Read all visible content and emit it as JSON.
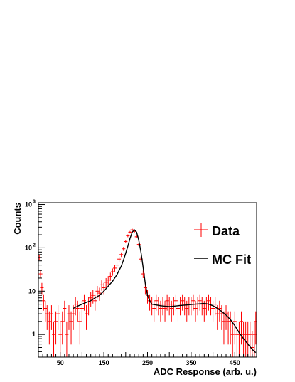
{
  "chart_data": {
    "type": "line",
    "xlabel": "ADC Response (arb. u.)",
    "ylabel": "Counts",
    "xlim": [
      0,
      500
    ],
    "ylim": [
      0.3,
      1100
    ],
    "yscale": "log",
    "x_ticks": [
      50,
      150,
      250,
      350,
      450
    ],
    "y_ticks": [
      {
        "value": 1,
        "label": "1"
      },
      {
        "value": 10,
        "label": "10"
      },
      {
        "value": 100,
        "label": "10",
        "exp": "2"
      },
      {
        "value": 1000,
        "label": "10",
        "exp": "3"
      }
    ],
    "grid": false,
    "legend_position": "right",
    "series": [
      {
        "name": "Data",
        "color": "#ff0000",
        "style": "error-bars",
        "x": [
          2,
          5,
          8,
          12,
          16,
          20,
          25,
          30,
          35,
          40,
          45,
          50,
          55,
          60,
          65,
          70,
          75,
          80,
          85,
          90,
          95,
          100,
          105,
          110,
          115,
          120,
          125,
          130,
          135,
          140,
          145,
          150,
          155,
          160,
          165,
          170,
          175,
          180,
          185,
          190,
          195,
          200,
          205,
          210,
          215,
          220,
          225,
          230,
          235,
          240,
          245,
          250,
          255,
          260,
          265,
          270,
          275,
          280,
          285,
          290,
          295,
          300,
          305,
          310,
          315,
          320,
          325,
          330,
          335,
          340,
          345,
          350,
          355,
          360,
          365,
          370,
          375,
          380,
          385,
          390,
          395,
          400,
          405,
          410,
          415,
          420,
          425,
          430,
          435,
          440,
          445,
          450,
          455,
          460,
          465,
          470,
          475,
          480,
          485,
          490,
          495,
          498
        ],
        "y": [
          60,
          25,
          12,
          6,
          4,
          3,
          2,
          3,
          1,
          2,
          3,
          1,
          2,
          4,
          1,
          3,
          2,
          3,
          5,
          4,
          2,
          4,
          6,
          3,
          5,
          7,
          8,
          6,
          10,
          9,
          14,
          12,
          16,
          18,
          22,
          28,
          34,
          40,
          55,
          70,
          95,
          140,
          190,
          230,
          260,
          240,
          180,
          120,
          55,
          25,
          12,
          8,
          6,
          5,
          4,
          6,
          5,
          4,
          5,
          4,
          6,
          5,
          4,
          5,
          6,
          4,
          5,
          6,
          5,
          4,
          5,
          5,
          6,
          4,
          5,
          6,
          5,
          4,
          5,
          6,
          5,
          4,
          5,
          3,
          4,
          3,
          2,
          3,
          2,
          2,
          1,
          2,
          1,
          1,
          2,
          1,
          1,
          1,
          1,
          0.5,
          1,
          2
        ]
      },
      {
        "name": "MC Fit",
        "color": "#000000",
        "style": "line",
        "x": [
          80,
          90,
          100,
          110,
          120,
          130,
          140,
          150,
          160,
          170,
          180,
          190,
          195,
          200,
          205,
          210,
          215,
          220,
          225,
          230,
          235,
          240,
          245,
          250,
          255,
          260,
          270,
          280,
          290,
          300,
          310,
          320,
          330,
          340,
          350,
          360,
          370,
          380,
          390,
          400,
          410,
          420,
          430,
          440,
          450,
          460,
          470,
          480,
          490,
          498
        ],
        "y": [
          4,
          4.5,
          5,
          5.5,
          6,
          7,
          8,
          10,
          13,
          17,
          24,
          38,
          52,
          75,
          110,
          165,
          230,
          260,
          230,
          150,
          80,
          35,
          15,
          8,
          6,
          5,
          4.8,
          4.6,
          4.5,
          4.4,
          4.5,
          4.6,
          4.7,
          4.8,
          4.9,
          5,
          5.1,
          5.2,
          5,
          4.6,
          4,
          3.4,
          2.8,
          2.2,
          1.6,
          1.1,
          0.8,
          0.6,
          0.45,
          0.38
        ]
      }
    ]
  }
}
